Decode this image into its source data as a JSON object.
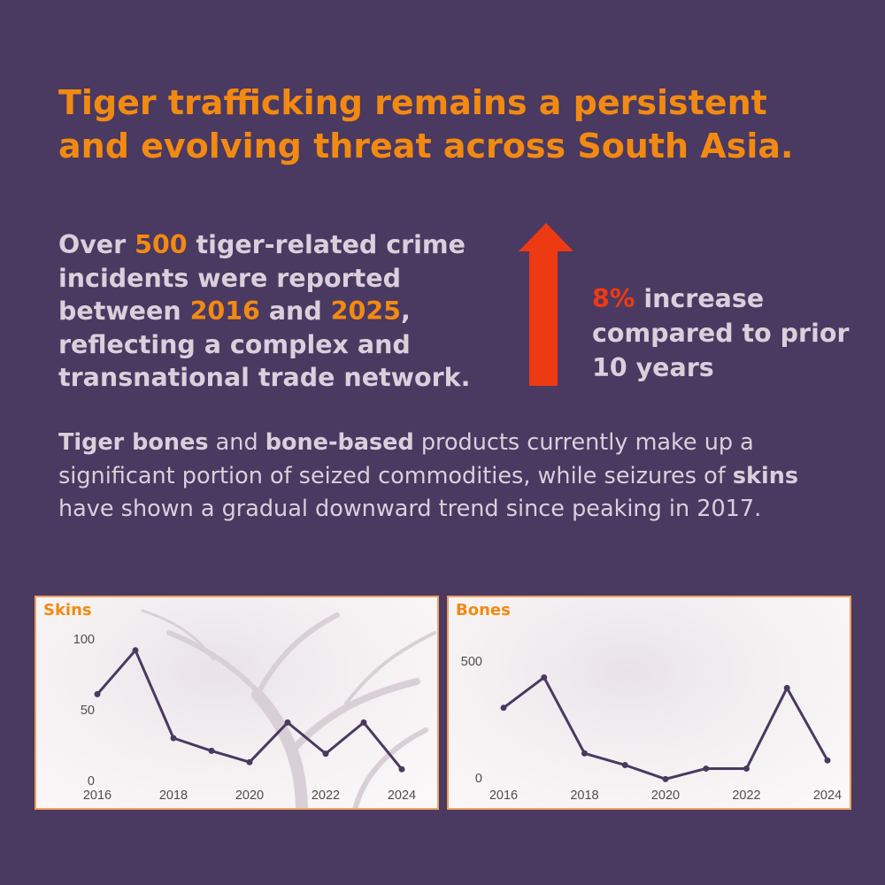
{
  "headline": "Tiger trafficking remains a persistent and evolving threat across South Asia.",
  "stat": {
    "pre": "Over ",
    "count": "500",
    "mid1": " tiger-related crime incidents were reported between ",
    "year_start": "2016",
    "mid2": " and ",
    "year_end": "2025",
    "post": ", reflecting a complex and transnational trade network."
  },
  "increase": {
    "pct": "8%",
    "text": " increase compared to prior 10 years",
    "arrow_color": "#ee3a12"
  },
  "description": {
    "b1": "Tiger bones",
    "t1": " and ",
    "b2": "bone-based",
    "t2": " products currently make up a significant portion of seized commodities, while seizures of ",
    "b3": "skins",
    "t3": " have shown a gradual downward trend since peaking in 2017."
  },
  "colors": {
    "background": "#4a3960",
    "accent": "#f28a12",
    "line": "#4a3960"
  },
  "chart_data": [
    {
      "type": "line",
      "title": "Skins",
      "x": [
        2016,
        2017,
        2018,
        2019,
        2020,
        2021,
        2022,
        2023,
        2024
      ],
      "values": [
        61,
        92,
        30,
        21,
        13,
        41,
        19,
        41,
        8
      ],
      "x_ticks": [
        "2016",
        "2018",
        "2020",
        "2022",
        "2024"
      ],
      "y_ticks": [
        "0",
        "50",
        "100"
      ],
      "ylim": [
        0,
        100
      ],
      "xlim": [
        2016,
        2024
      ],
      "grid": false
    },
    {
      "type": "line",
      "title": "Bones",
      "x": [
        2016,
        2017,
        2018,
        2019,
        2020,
        2021,
        2022,
        2023,
        2024
      ],
      "values": [
        300,
        430,
        105,
        55,
        -5,
        40,
        40,
        385,
        75
      ],
      "x_ticks": [
        "2016",
        "2018",
        "2020",
        "2022",
        "2024"
      ],
      "y_ticks": [
        "0",
        "500"
      ],
      "ylim": [
        0,
        500
      ],
      "xlim": [
        2016,
        2024
      ],
      "grid": false
    }
  ]
}
